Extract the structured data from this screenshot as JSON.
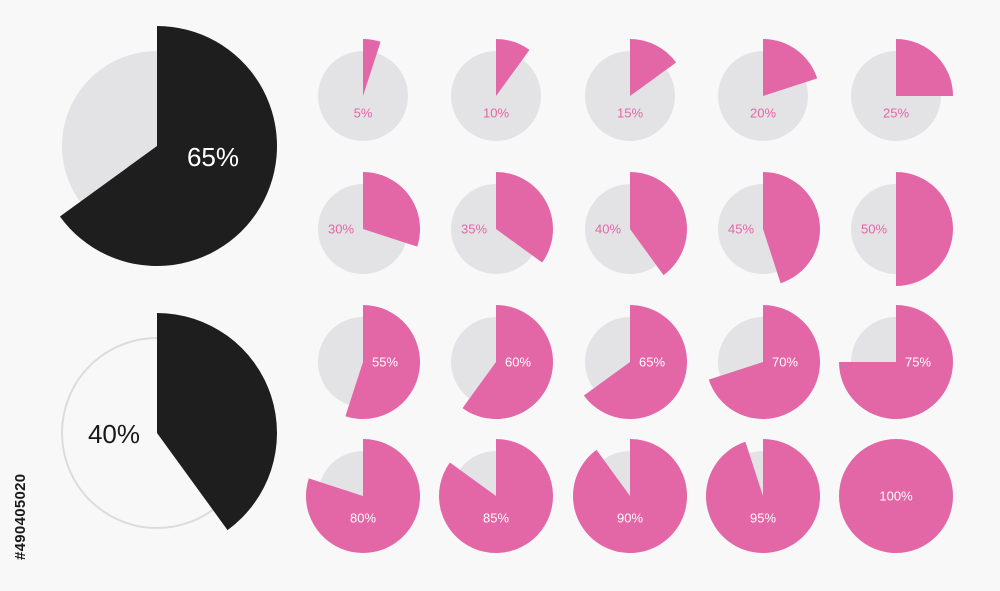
{
  "colors": {
    "background": "#f8f8f8",
    "track": "#e3e3e6",
    "pink": "#e366a6",
    "dark": "#1e1e1e",
    "ring": "#dcdcdc",
    "white_text": "#ffffff",
    "black_text": "#1a1a1a"
  },
  "chart_data": [
    {
      "type": "pie",
      "style": "large-dark-filled-track",
      "value": 65,
      "label": "65%"
    },
    {
      "type": "pie",
      "style": "large-dark-ring-track",
      "value": 40,
      "label": "40%"
    },
    {
      "type": "pie",
      "style": "small-pink-grid",
      "rows": 4,
      "columns": 5,
      "values": [
        5,
        10,
        15,
        20,
        25,
        30,
        35,
        40,
        45,
        50,
        55,
        60,
        65,
        70,
        75,
        80,
        85,
        90,
        95,
        100
      ],
      "labels": [
        "5%",
        "10%",
        "15%",
        "20%",
        "25%",
        "30%",
        "35%",
        "40%",
        "45%",
        "50%",
        "55%",
        "60%",
        "65%",
        "70%",
        "75%",
        "80%",
        "85%",
        "90%",
        "95%",
        "100%"
      ]
    }
  ],
  "watermark": "#490405020"
}
